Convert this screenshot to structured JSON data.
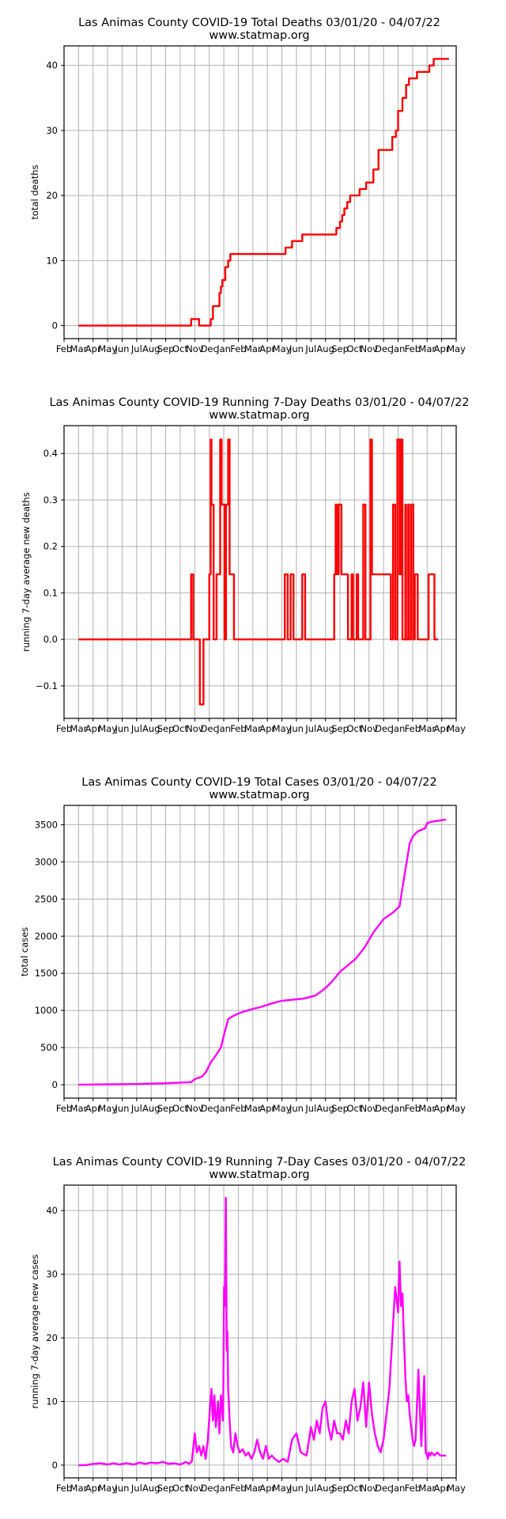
{
  "x_months": [
    "Feb",
    "Mar",
    "Apr",
    "May",
    "Jun",
    "Jul",
    "Aug",
    "Sep",
    "Oct",
    "Nov",
    "Dec",
    "Jan",
    "Feb",
    "Mar",
    "Apr",
    "May",
    "Jun",
    "Jul",
    "Aug",
    "Sep",
    "Oct",
    "Nov",
    "Dec",
    "Jan",
    "Feb",
    "Mar",
    "Apr",
    "May"
  ],
  "x_domain_months": [
    0,
    27
  ],
  "chart_data": [
    {
      "type": "line",
      "title": "Las Animas County COVID-19 Total Deaths 03/01/20 - 04/07/22",
      "subtitle": "www.statmap.org",
      "xlabel": "",
      "ylabel": "total deaths",
      "color": "#ff0000",
      "step": true,
      "ylim": [
        -2,
        43
      ],
      "yticks": [
        0,
        10,
        20,
        30,
        40
      ],
      "ytick_labels": [
        "0",
        "10",
        "20",
        "30",
        "40"
      ],
      "x": [
        1.0,
        8.75,
        9.3,
        9.4,
        10.1,
        10.25,
        10.4,
        10.7,
        10.8,
        10.9,
        11.1,
        11.3,
        11.45,
        11.65,
        11.85,
        15.25,
        15.7,
        16.4,
        18.75,
        19.0,
        19.15,
        19.3,
        19.5,
        19.7,
        19.9,
        20.35,
        20.8,
        21.3,
        21.65,
        22.6,
        22.7,
        22.85,
        23.0,
        23.3,
        23.55,
        23.75,
        23.95,
        24.3,
        25.15,
        25.45,
        26.25
      ],
      "values": [
        0,
        1,
        0,
        0,
        1,
        3,
        3,
        5,
        6,
        7,
        9,
        10,
        11,
        11,
        11,
        12,
        13,
        14,
        15,
        16,
        17,
        18,
        19,
        20,
        20,
        21,
        22,
        24,
        27,
        29,
        29,
        30,
        33,
        35,
        37,
        38,
        38,
        39,
        40,
        41,
        41
      ]
    },
    {
      "type": "line",
      "title": "Las Animas County COVID-19 Running 7-Day Deaths 03/01/20 - 04/07/22",
      "subtitle": "www.statmap.org",
      "xlabel": "",
      "ylabel": "running 7-day average new deaths",
      "color": "#ff0000",
      "step": true,
      "ylim": [
        -0.17,
        0.46
      ],
      "yticks": [
        -0.1,
        0.0,
        0.1,
        0.2,
        0.3,
        0.4
      ],
      "ytick_labels": [
        "−0.1",
        "0.0",
        "0.1",
        "0.2",
        "0.3",
        "0.4"
      ],
      "x": [
        1.0,
        8.75,
        8.9,
        9.35,
        9.6,
        9.8,
        10.0,
        10.1,
        10.15,
        10.3,
        10.5,
        10.75,
        10.85,
        11.05,
        11.15,
        11.3,
        11.4,
        11.5,
        11.7,
        11.95,
        15.2,
        15.4,
        15.6,
        15.8,
        16.4,
        16.6,
        18.6,
        18.7,
        18.8,
        18.9,
        19.1,
        19.55,
        19.8,
        19.9,
        20.15,
        20.25,
        20.6,
        20.75,
        21.1,
        21.2,
        22.5,
        22.65,
        22.8,
        22.95,
        23.1,
        23.2,
        23.3,
        23.5,
        23.55,
        23.7,
        23.75,
        23.9,
        24.05,
        24.15,
        24.35,
        25.1,
        25.5
      ],
      "values": [
        0.0,
        0.14,
        0.0,
        -0.14,
        0.0,
        0.0,
        0.14,
        0.43,
        0.29,
        0.0,
        0.14,
        0.43,
        0.29,
        0.0,
        0.29,
        0.43,
        0.14,
        0.14,
        0.0,
        0.0,
        0.14,
        0.0,
        0.14,
        0.0,
        0.14,
        0.0,
        0.14,
        0.29,
        0.14,
        0.29,
        0.14,
        0.0,
        0.14,
        0.0,
        0.14,
        0.0,
        0.29,
        0.0,
        0.43,
        0.14,
        0.0,
        0.29,
        0.0,
        0.43,
        0.14,
        0.43,
        0.0,
        0.29,
        0.0,
        0.29,
        0.0,
        0.29,
        0.0,
        0.14,
        0.0,
        0.14,
        0.0
      ]
    },
    {
      "type": "line",
      "title": "Las Animas County COVID-19 Total Cases 03/01/20 - 04/07/22",
      "subtitle": "www.statmap.org",
      "xlabel": "",
      "ylabel": "total cases",
      "color": "#ff00ff",
      "step": false,
      "ylim": [
        -180,
        3760
      ],
      "yticks": [
        0,
        500,
        1000,
        1500,
        2000,
        2500,
        3000,
        3500
      ],
      "ytick_labels": [
        "0",
        "500",
        "1000",
        "1500",
        "2000",
        "2500",
        "3000",
        "3500"
      ],
      "x": [
        1.0,
        3.0,
        5.0,
        7.0,
        8.0,
        8.75,
        9.0,
        9.5,
        9.8,
        10.1,
        10.4,
        10.8,
        11.05,
        11.2,
        11.3,
        11.5,
        11.8,
        12.3,
        13.0,
        13.6,
        14.4,
        15.0,
        15.5,
        16.5,
        17.3,
        18.0,
        18.5,
        19.0,
        19.5,
        20.1,
        20.7,
        21.3,
        22.0,
        22.6,
        23.1,
        23.3,
        23.55,
        23.8,
        24.05,
        24.35,
        24.85,
        25.0,
        25.3,
        26.3
      ],
      "values": [
        0,
        5,
        10,
        20,
        28,
        35,
        75,
        110,
        180,
        300,
        380,
        500,
        700,
        810,
        880,
        910,
        940,
        980,
        1020,
        1050,
        1100,
        1130,
        1140,
        1160,
        1200,
        1300,
        1400,
        1520,
        1600,
        1700,
        1850,
        2050,
        2230,
        2310,
        2400,
        2650,
        2950,
        3250,
        3350,
        3410,
        3450,
        3520,
        3540,
        3570
      ]
    },
    {
      "type": "line",
      "title": "Las Animas County COVID-19 Running 7-Day Cases 03/01/20 - 04/07/22",
      "subtitle": "www.statmap.org",
      "xlabel": "",
      "ylabel": "running 7-day average new cases",
      "color": "#ff00ff",
      "step": false,
      "ylim": [
        -2,
        44
      ],
      "yticks": [
        0,
        10,
        20,
        30,
        40
      ],
      "ytick_labels": [
        "0",
        "10",
        "20",
        "30",
        "40"
      ],
      "x": [
        1.0,
        1.5,
        2.0,
        2.5,
        3.0,
        3.4,
        3.8,
        4.3,
        4.8,
        5.2,
        5.6,
        6.0,
        6.4,
        6.8,
        7.2,
        7.6,
        8.0,
        8.4,
        8.6,
        8.8,
        9.0,
        9.15,
        9.3,
        9.45,
        9.6,
        9.75,
        9.9,
        10.05,
        10.15,
        10.25,
        10.35,
        10.45,
        10.6,
        10.7,
        10.8,
        10.95,
        11.02,
        11.08,
        11.14,
        11.2,
        11.25,
        11.3,
        11.4,
        11.5,
        11.65,
        11.8,
        11.95,
        12.1,
        12.3,
        12.5,
        12.7,
        12.9,
        13.1,
        13.3,
        13.5,
        13.7,
        13.9,
        14.1,
        14.3,
        14.5,
        14.8,
        15.1,
        15.4,
        15.7,
        16.0,
        16.3,
        16.7,
        17.0,
        17.2,
        17.4,
        17.6,
        17.8,
        18.0,
        18.2,
        18.4,
        18.6,
        18.8,
        19.0,
        19.2,
        19.4,
        19.6,
        19.8,
        20.0,
        20.2,
        20.4,
        20.6,
        20.8,
        21.0,
        21.2,
        21.4,
        21.6,
        21.8,
        22.0,
        22.2,
        22.4,
        22.6,
        22.8,
        23.0,
        23.1,
        23.2,
        23.3,
        23.4,
        23.5,
        23.6,
        23.7,
        23.8,
        23.9,
        24.0,
        24.1,
        24.2,
        24.4,
        24.6,
        24.8,
        24.9,
        25.0,
        25.05,
        25.1,
        25.2,
        25.3,
        25.5,
        25.7,
        25.9,
        26.1,
        26.3
      ],
      "values": [
        0,
        0,
        0.2,
        0.3,
        0.1,
        0.3,
        0.1,
        0.3,
        0.1,
        0.4,
        0.2,
        0.4,
        0.3,
        0.5,
        0.2,
        0.3,
        0.1,
        0.5,
        0.2,
        0.6,
        5,
        2,
        3,
        1.5,
        3,
        1,
        4,
        9,
        12,
        7,
        11,
        6,
        10,
        5,
        11,
        7,
        28,
        25,
        42,
        18,
        21,
        12,
        7,
        3,
        2,
        5,
        3,
        2,
        2.5,
        1.5,
        2,
        1,
        2,
        4,
        2,
        1,
        3,
        1,
        1.5,
        1,
        0.5,
        1,
        0.5,
        4,
        5,
        2,
        1.5,
        6,
        4,
        7,
        5,
        9,
        10,
        6,
        4,
        7,
        5,
        5,
        4,
        7,
        5,
        10,
        12,
        7,
        9,
        13,
        6,
        13,
        8,
        5,
        3,
        2,
        4,
        8,
        12,
        20,
        28,
        24,
        32,
        25,
        27,
        20,
        14,
        10,
        11,
        8,
        6,
        4,
        3,
        4,
        15,
        3,
        14,
        2,
        1.5,
        1,
        2,
        1.5,
        2,
        1.5,
        2,
        1.5,
        1.5,
        1.5
      ]
    }
  ]
}
